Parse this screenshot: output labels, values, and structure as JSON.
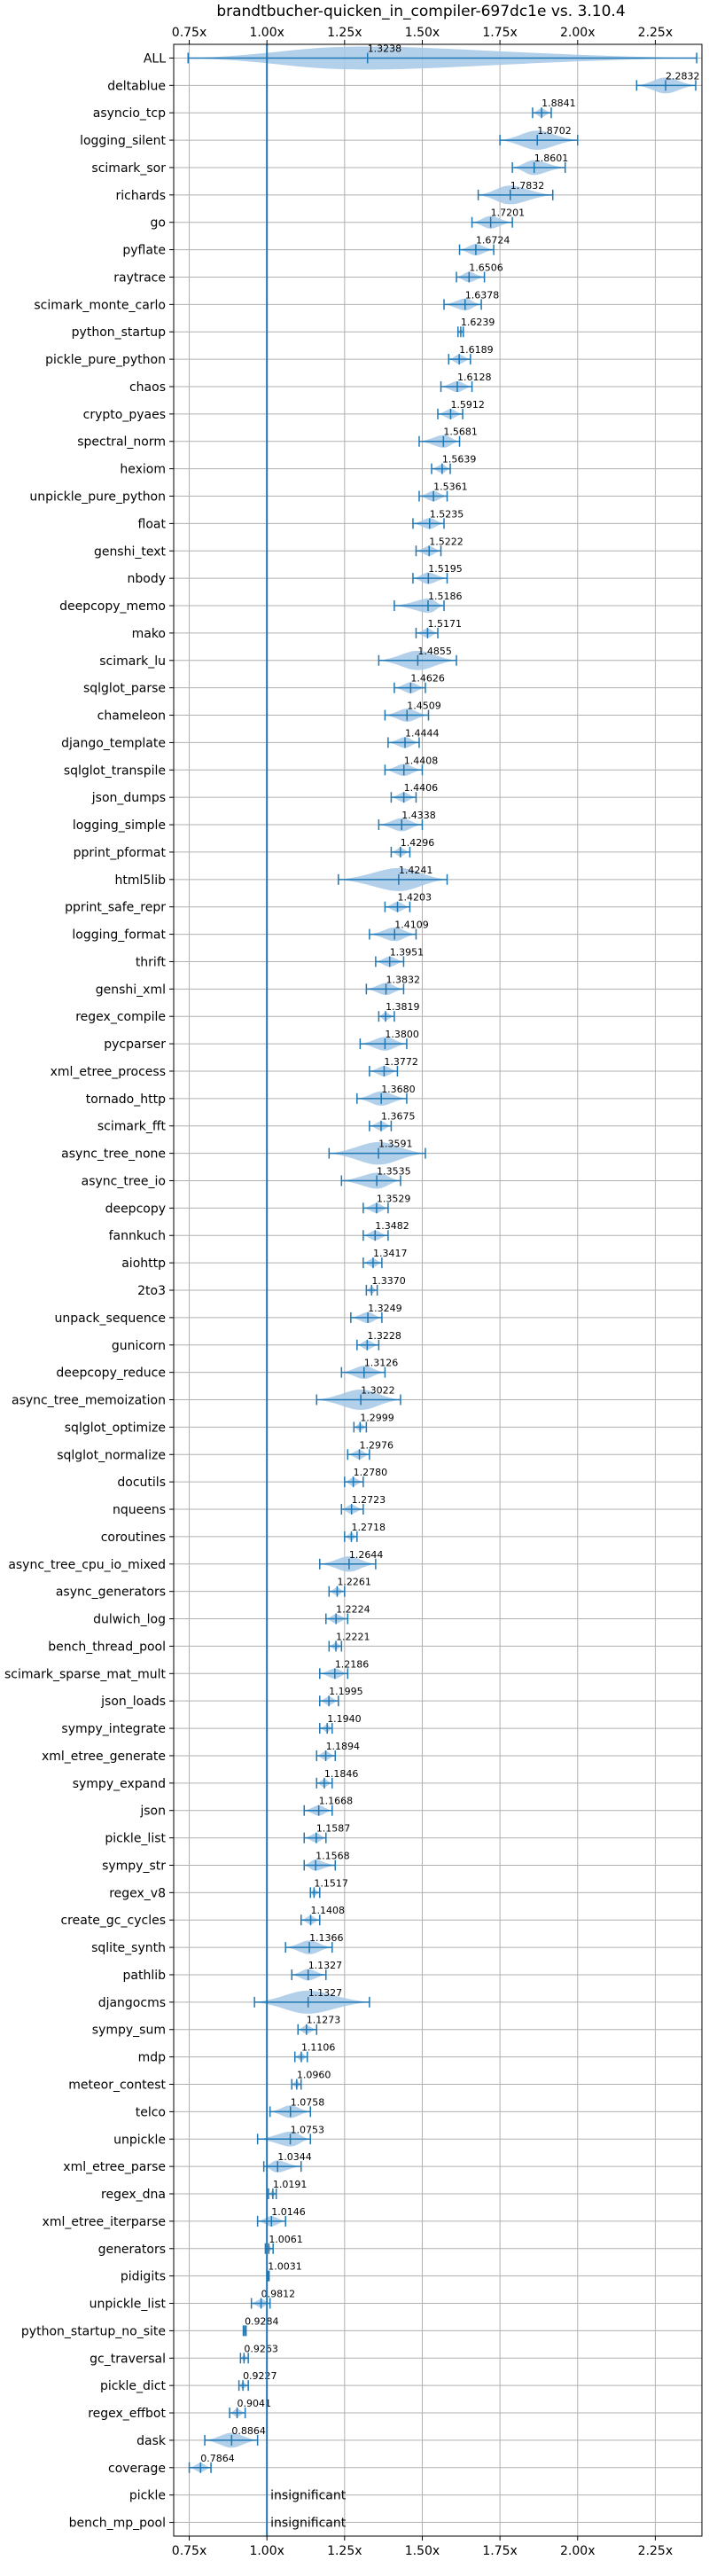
{
  "chart_data": {
    "type": "violin",
    "title": "brandtbucher-quicken_in_compiler-697dc1e vs. 3.10.4",
    "xlim": [
      0.7,
      2.4
    ],
    "x_ticks": [
      0.75,
      1.0,
      1.25,
      1.5,
      1.75,
      2.0,
      2.25
    ],
    "x_tick_labels": [
      "0.75x",
      "1.00x",
      "1.25x",
      "1.50x",
      "1.75x",
      "2.00x",
      "2.25x"
    ],
    "reference_x": 1.0,
    "grid": true,
    "insignificant_label": "insignificant",
    "benchmarks": [
      {
        "name": "ALL",
        "value": 1.3238,
        "label": "1.3238",
        "low": 0.7464,
        "high": 2.3832
      },
      {
        "name": "deltablue",
        "value": 2.2832,
        "label": "2.2832",
        "low": 2.19,
        "high": 2.38
      },
      {
        "name": "asyncio_tcp",
        "value": 1.8841,
        "label": "1.8841",
        "low": 1.855,
        "high": 1.915
      },
      {
        "name": "logging_silent",
        "value": 1.8702,
        "label": "1.8702",
        "low": 1.75,
        "high": 2.0
      },
      {
        "name": "scimark_sor",
        "value": 1.8601,
        "label": "1.8601",
        "low": 1.79,
        "high": 1.96
      },
      {
        "name": "richards",
        "value": 1.7832,
        "label": "1.7832",
        "low": 1.68,
        "high": 1.92
      },
      {
        "name": "go",
        "value": 1.7201,
        "label": "1.7201",
        "low": 1.66,
        "high": 1.79
      },
      {
        "name": "pyflate",
        "value": 1.6724,
        "label": "1.6724",
        "low": 1.62,
        "high": 1.73
      },
      {
        "name": "raytrace",
        "value": 1.6506,
        "label": "1.6506",
        "low": 1.61,
        "high": 1.7
      },
      {
        "name": "scimark_monte_carlo",
        "value": 1.6378,
        "label": "1.6378",
        "low": 1.57,
        "high": 1.69
      },
      {
        "name": "python_startup",
        "value": 1.6239,
        "label": "1.6239",
        "low": 1.615,
        "high": 1.632
      },
      {
        "name": "pickle_pure_python",
        "value": 1.6189,
        "label": "1.6189",
        "low": 1.585,
        "high": 1.655
      },
      {
        "name": "chaos",
        "value": 1.6128,
        "label": "1.6128",
        "low": 1.56,
        "high": 1.66
      },
      {
        "name": "crypto_pyaes",
        "value": 1.5912,
        "label": "1.5912",
        "low": 1.55,
        "high": 1.63
      },
      {
        "name": "spectral_norm",
        "value": 1.5681,
        "label": "1.5681",
        "low": 1.49,
        "high": 1.62
      },
      {
        "name": "hexiom",
        "value": 1.5639,
        "label": "1.5639",
        "low": 1.53,
        "high": 1.59
      },
      {
        "name": "unpickle_pure_python",
        "value": 1.5361,
        "label": "1.5361",
        "low": 1.49,
        "high": 1.58
      },
      {
        "name": "float",
        "value": 1.5235,
        "label": "1.5235",
        "low": 1.47,
        "high": 1.57
      },
      {
        "name": "genshi_text",
        "value": 1.5222,
        "label": "1.5222",
        "low": 1.48,
        "high": 1.56
      },
      {
        "name": "nbody",
        "value": 1.5195,
        "label": "1.5195",
        "low": 1.47,
        "high": 1.58
      },
      {
        "name": "deepcopy_memo",
        "value": 1.5186,
        "label": "1.5186",
        "low": 1.41,
        "high": 1.57
      },
      {
        "name": "mako",
        "value": 1.5171,
        "label": "1.5171",
        "low": 1.48,
        "high": 1.55
      },
      {
        "name": "scimark_lu",
        "value": 1.4855,
        "label": "1.4855",
        "low": 1.36,
        "high": 1.61
      },
      {
        "name": "sqlglot_parse",
        "value": 1.4626,
        "label": "1.4626",
        "low": 1.41,
        "high": 1.51
      },
      {
        "name": "chameleon",
        "value": 1.4509,
        "label": "1.4509",
        "low": 1.38,
        "high": 1.52
      },
      {
        "name": "django_template",
        "value": 1.4444,
        "label": "1.4444",
        "low": 1.39,
        "high": 1.49
      },
      {
        "name": "sqlglot_transpile",
        "value": 1.4408,
        "label": "1.4408",
        "low": 1.38,
        "high": 1.5
      },
      {
        "name": "json_dumps",
        "value": 1.4406,
        "label": "1.4406",
        "low": 1.4,
        "high": 1.48
      },
      {
        "name": "logging_simple",
        "value": 1.4338,
        "label": "1.4338",
        "low": 1.36,
        "high": 1.5
      },
      {
        "name": "pprint_pformat",
        "value": 1.4296,
        "label": "1.4296",
        "low": 1.4,
        "high": 1.46
      },
      {
        "name": "html5lib",
        "value": 1.4241,
        "label": "1.4241",
        "low": 1.23,
        "high": 1.58
      },
      {
        "name": "pprint_safe_repr",
        "value": 1.4203,
        "label": "1.4203",
        "low": 1.38,
        "high": 1.46
      },
      {
        "name": "logging_format",
        "value": 1.4109,
        "label": "1.4109",
        "low": 1.33,
        "high": 1.48
      },
      {
        "name": "thrift",
        "value": 1.3951,
        "label": "1.3951",
        "low": 1.35,
        "high": 1.44
      },
      {
        "name": "genshi_xml",
        "value": 1.3832,
        "label": "1.3832",
        "low": 1.32,
        "high": 1.44
      },
      {
        "name": "regex_compile",
        "value": 1.3819,
        "label": "1.3819",
        "low": 1.36,
        "high": 1.41
      },
      {
        "name": "pycparser",
        "value": 1.38,
        "label": "1.3800",
        "low": 1.3,
        "high": 1.45
      },
      {
        "name": "xml_etree_process",
        "value": 1.3772,
        "label": "1.3772",
        "low": 1.33,
        "high": 1.42
      },
      {
        "name": "tornado_http",
        "value": 1.368,
        "label": "1.3680",
        "low": 1.29,
        "high": 1.45
      },
      {
        "name": "scimark_fft",
        "value": 1.3675,
        "label": "1.3675",
        "low": 1.33,
        "high": 1.4
      },
      {
        "name": "async_tree_none",
        "value": 1.3591,
        "label": "1.3591",
        "low": 1.2,
        "high": 1.51
      },
      {
        "name": "async_tree_io",
        "value": 1.3535,
        "label": "1.3535",
        "low": 1.24,
        "high": 1.43
      },
      {
        "name": "deepcopy",
        "value": 1.3529,
        "label": "1.3529",
        "low": 1.31,
        "high": 1.39
      },
      {
        "name": "fannkuch",
        "value": 1.3482,
        "label": "1.3482",
        "low": 1.31,
        "high": 1.39
      },
      {
        "name": "aiohttp",
        "value": 1.3417,
        "label": "1.3417",
        "low": 1.31,
        "high": 1.37
      },
      {
        "name": "2to3",
        "value": 1.337,
        "label": "1.3370",
        "low": 1.32,
        "high": 1.355
      },
      {
        "name": "unpack_sequence",
        "value": 1.3249,
        "label": "1.3249",
        "low": 1.27,
        "high": 1.37
      },
      {
        "name": "gunicorn",
        "value": 1.3228,
        "label": "1.3228",
        "low": 1.29,
        "high": 1.36
      },
      {
        "name": "deepcopy_reduce",
        "value": 1.3126,
        "label": "1.3126",
        "low": 1.24,
        "high": 1.38
      },
      {
        "name": "async_tree_memoization",
        "value": 1.3022,
        "label": "1.3022",
        "low": 1.16,
        "high": 1.43
      },
      {
        "name": "sqlglot_optimize",
        "value": 1.2999,
        "label": "1.2999",
        "low": 1.28,
        "high": 1.32
      },
      {
        "name": "sqlglot_normalize",
        "value": 1.2976,
        "label": "1.2976",
        "low": 1.26,
        "high": 1.33
      },
      {
        "name": "docutils",
        "value": 1.278,
        "label": "1.2780",
        "low": 1.25,
        "high": 1.31
      },
      {
        "name": "nqueens",
        "value": 1.2723,
        "label": "1.2723",
        "low": 1.24,
        "high": 1.31
      },
      {
        "name": "coroutines",
        "value": 1.2718,
        "label": "1.2718",
        "low": 1.25,
        "high": 1.29
      },
      {
        "name": "async_tree_cpu_io_mixed",
        "value": 1.2644,
        "label": "1.2644",
        "low": 1.17,
        "high": 1.35
      },
      {
        "name": "async_generators",
        "value": 1.2261,
        "label": "1.2261",
        "low": 1.2,
        "high": 1.25
      },
      {
        "name": "dulwich_log",
        "value": 1.2224,
        "label": "1.2224",
        "low": 1.19,
        "high": 1.26
      },
      {
        "name": "bench_thread_pool",
        "value": 1.2221,
        "label": "1.2221",
        "low": 1.2,
        "high": 1.24
      },
      {
        "name": "scimark_sparse_mat_mult",
        "value": 1.2186,
        "label": "1.2186",
        "low": 1.17,
        "high": 1.26
      },
      {
        "name": "json_loads",
        "value": 1.1995,
        "label": "1.1995",
        "low": 1.17,
        "high": 1.23
      },
      {
        "name": "sympy_integrate",
        "value": 1.194,
        "label": "1.1940",
        "low": 1.17,
        "high": 1.21
      },
      {
        "name": "xml_etree_generate",
        "value": 1.1894,
        "label": "1.1894",
        "low": 1.16,
        "high": 1.22
      },
      {
        "name": "sympy_expand",
        "value": 1.1846,
        "label": "1.1846",
        "low": 1.16,
        "high": 1.21
      },
      {
        "name": "json",
        "value": 1.1668,
        "label": "1.1668",
        "low": 1.12,
        "high": 1.21
      },
      {
        "name": "pickle_list",
        "value": 1.1587,
        "label": "1.1587",
        "low": 1.12,
        "high": 1.19
      },
      {
        "name": "sympy_str",
        "value": 1.1568,
        "label": "1.1568",
        "low": 1.12,
        "high": 1.22
      },
      {
        "name": "regex_v8",
        "value": 1.1517,
        "label": "1.1517",
        "low": 1.14,
        "high": 1.17
      },
      {
        "name": "create_gc_cycles",
        "value": 1.1408,
        "label": "1.1408",
        "low": 1.11,
        "high": 1.17
      },
      {
        "name": "sqlite_synth",
        "value": 1.1366,
        "label": "1.1366",
        "low": 1.06,
        "high": 1.21
      },
      {
        "name": "pathlib",
        "value": 1.1327,
        "label": "1.1327",
        "low": 1.08,
        "high": 1.19
      },
      {
        "name": "djangocms",
        "value": 1.1327,
        "label": "1.1327",
        "low": 0.96,
        "high": 1.33
      },
      {
        "name": "sympy_sum",
        "value": 1.1273,
        "label": "1.1273",
        "low": 1.1,
        "high": 1.16
      },
      {
        "name": "mdp",
        "value": 1.1106,
        "label": "1.1106",
        "low": 1.09,
        "high": 1.13
      },
      {
        "name": "meteor_contest",
        "value": 1.096,
        "label": "1.0960",
        "low": 1.08,
        "high": 1.11
      },
      {
        "name": "telco",
        "value": 1.0758,
        "label": "1.0758",
        "low": 1.01,
        "high": 1.14
      },
      {
        "name": "unpickle",
        "value": 1.0753,
        "label": "1.0753",
        "low": 0.97,
        "high": 1.14
      },
      {
        "name": "xml_etree_parse",
        "value": 1.0344,
        "label": "1.0344",
        "low": 0.99,
        "high": 1.11
      },
      {
        "name": "regex_dna",
        "value": 1.0191,
        "label": "1.0191",
        "low": 1.005,
        "high": 1.03
      },
      {
        "name": "xml_etree_iterparse",
        "value": 1.0146,
        "label": "1.0146",
        "low": 0.97,
        "high": 1.06
      },
      {
        "name": "generators",
        "value": 1.0061,
        "label": "1.0061",
        "low": 0.995,
        "high": 1.02
      },
      {
        "name": "pidigits",
        "value": 1.0031,
        "label": "1.0031",
        "low": 1.0,
        "high": 1.007
      },
      {
        "name": "unpickle_list",
        "value": 0.9812,
        "label": "0.9812",
        "low": 0.95,
        "high": 1.01
      },
      {
        "name": "python_startup_no_site",
        "value": 0.9284,
        "label": "0.9284",
        "low": 0.924,
        "high": 0.933
      },
      {
        "name": "gc_traversal",
        "value": 0.9263,
        "label": "0.9263",
        "low": 0.915,
        "high": 0.94
      },
      {
        "name": "pickle_dict",
        "value": 0.9227,
        "label": "0.9227",
        "low": 0.91,
        "high": 0.94
      },
      {
        "name": "regex_effbot",
        "value": 0.9041,
        "label": "0.9041",
        "low": 0.88,
        "high": 0.93
      },
      {
        "name": "dask",
        "value": 0.8864,
        "label": "0.8864",
        "low": 0.8,
        "high": 0.97
      },
      {
        "name": "coverage",
        "value": 0.7864,
        "label": "0.7864",
        "low": 0.75,
        "high": 0.82
      },
      {
        "name": "pickle",
        "value": null,
        "label": "",
        "low": null,
        "high": null
      },
      {
        "name": "bench_mp_pool",
        "value": null,
        "label": "",
        "low": null,
        "high": null
      }
    ]
  }
}
